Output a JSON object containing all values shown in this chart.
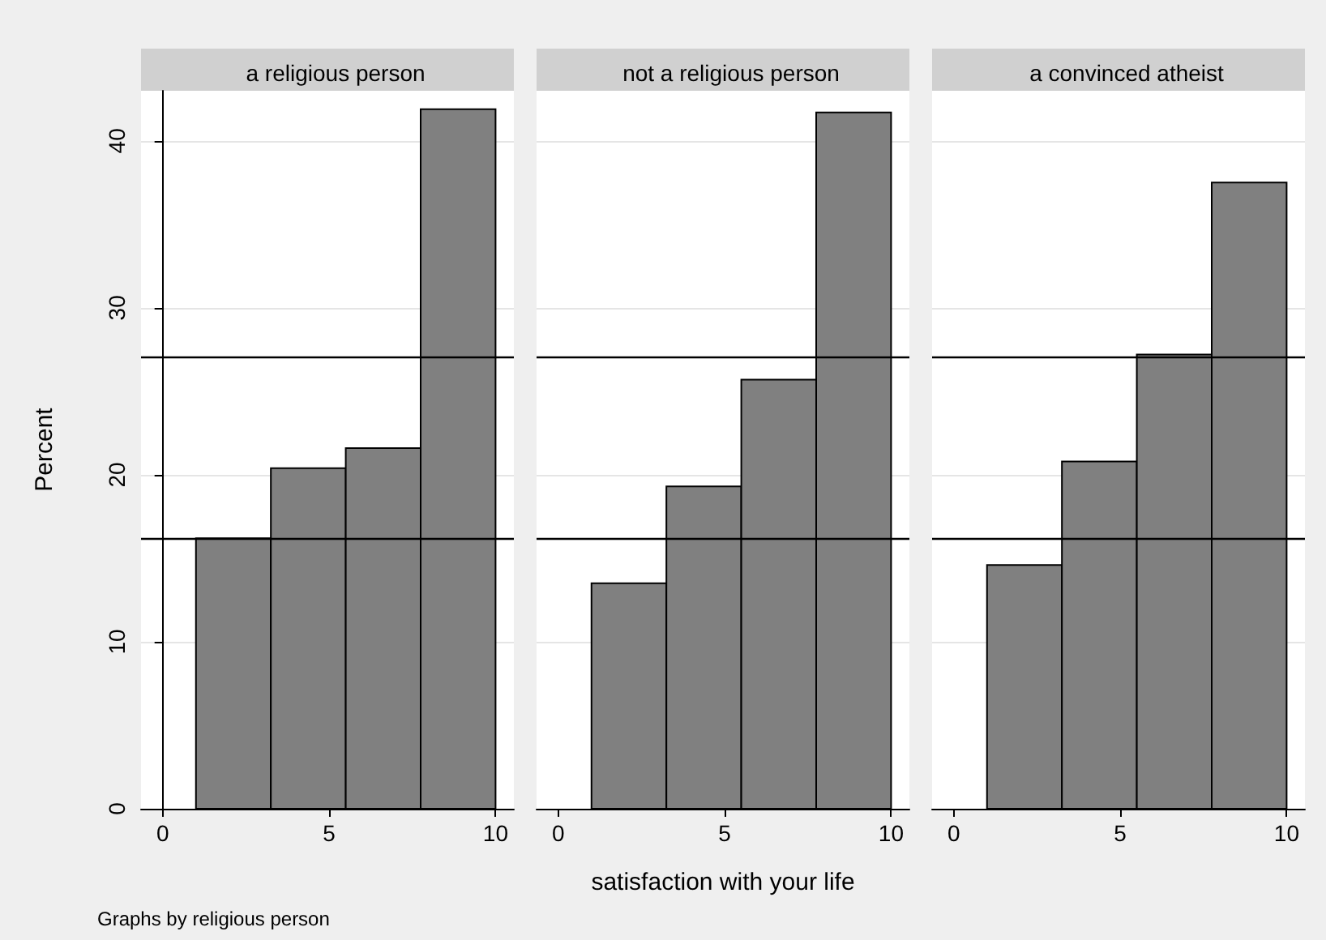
{
  "chart_data": [
    {
      "type": "histogram",
      "title": "a religious person",
      "ylabel": "Percent",
      "annotations": [
        "Graphs by religious person"
      ],
      "bins": [
        1,
        3.25,
        5.5,
        7.75,
        10
      ],
      "values": [
        16.2,
        20.4,
        21.6,
        41.9
      ],
      "color": "#808080",
      "xlim": [
        -0.65,
        10.55
      ],
      "xticks": [
        0,
        5,
        10
      ],
      "ylim": [
        0,
        43
      ],
      "yticks": [
        0,
        10,
        20,
        30,
        40
      ],
      "grid": "y",
      "ref_lines": [
        {
          "axis": "y",
          "value": 27.1,
          "color": "#000000"
        },
        {
          "axis": "y",
          "value": 16.2,
          "color": "#000000"
        }
      ]
    },
    {
      "type": "histogram",
      "title": "not a religious person",
      "xlabel": "satisfaction with your life",
      "bins": [
        1,
        3.25,
        5.5,
        7.75,
        10
      ],
      "values": [
        13.5,
        19.3,
        25.7,
        41.7
      ],
      "color": "#808080",
      "xlim": [
        -0.65,
        10.55
      ],
      "xticks": [
        0,
        5,
        10
      ],
      "ylim": [
        0,
        43
      ],
      "yticks": [
        0,
        10,
        20,
        30,
        40
      ],
      "grid": "y",
      "tick_labels": "x",
      "ref_lines": [
        {
          "axis": "y",
          "value": 27.1,
          "color": "#000000"
        },
        {
          "axis": "y",
          "value": 16.2,
          "color": "#000000"
        }
      ]
    },
    {
      "type": "histogram",
      "title": "a convinced atheist",
      "bins": [
        1,
        3.25,
        5.5,
        7.75,
        10
      ],
      "values": [
        14.6,
        20.8,
        27.2,
        37.5
      ],
      "color": "#808080",
      "xlim": [
        -0.65,
        10.55
      ],
      "xticks": [
        0,
        5,
        10
      ],
      "ylim": [
        0,
        43
      ],
      "yticks": [
        0,
        10,
        20,
        30,
        40
      ],
      "grid": "y",
      "tick_labels": "x",
      "ref_lines": [
        {
          "axis": "y",
          "value": 27.1,
          "color": "#000000"
        },
        {
          "axis": "y",
          "value": 16.2,
          "color": "#000000"
        }
      ]
    }
  ]
}
